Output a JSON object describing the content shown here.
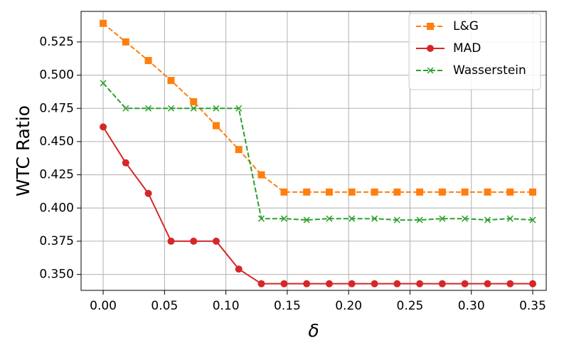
{
  "chart_data": {
    "type": "line",
    "xlabel": "δ",
    "ylabel": "WTC Ratio",
    "x": [
      0,
      0.0184,
      0.0368,
      0.0553,
      0.0737,
      0.0921,
      0.1105,
      0.1289,
      0.1474,
      0.1658,
      0.1842,
      0.2026,
      0.2211,
      0.2395,
      0.2579,
      0.2763,
      0.2947,
      0.3132,
      0.3316,
      0.35
    ],
    "series": [
      {
        "name": "L&G",
        "color": "#ff7f0e",
        "marker": "square",
        "dashed": true,
        "values": [
          0.539,
          0.525,
          0.511,
          0.496,
          0.48,
          0.462,
          0.444,
          0.425,
          0.412,
          0.412,
          0.412,
          0.412,
          0.412,
          0.412,
          0.412,
          0.412,
          0.412,
          0.412,
          0.412,
          0.412
        ]
      },
      {
        "name": "MAD",
        "color": "#d62728",
        "marker": "circle",
        "dashed": false,
        "values": [
          0.461,
          0.434,
          0.411,
          0.375,
          0.375,
          0.375,
          0.354,
          0.343,
          0.343,
          0.343,
          0.343,
          0.343,
          0.343,
          0.343,
          0.343,
          0.343,
          0.343,
          0.343,
          0.343,
          0.343
        ]
      },
      {
        "name": "Wasserstein",
        "color": "#2ca02c",
        "marker": "x",
        "dashed": true,
        "values": [
          0.494,
          0.475,
          0.475,
          0.475,
          0.475,
          0.475,
          0.475,
          0.392,
          0.392,
          0.391,
          0.392,
          0.392,
          0.392,
          0.391,
          0.391,
          0.392,
          0.392,
          0.391,
          0.392,
          0.391
        ]
      }
    ],
    "xlim": [
      -0.018,
      0.361
    ],
    "ylim": [
      0.338,
      0.548
    ],
    "xticks": [
      {
        "value": 0,
        "label": "0.00"
      },
      {
        "value": 0.05,
        "label": "0.05"
      },
      {
        "value": 0.1,
        "label": "0.10"
      },
      {
        "value": 0.15,
        "label": "0.15"
      },
      {
        "value": 0.2,
        "label": "0.20"
      },
      {
        "value": 0.25,
        "label": "0.25"
      },
      {
        "value": 0.3,
        "label": "0.30"
      },
      {
        "value": 0.35,
        "label": "0.35"
      }
    ],
    "yticks": [
      {
        "value": 0.35,
        "label": "0.350"
      },
      {
        "value": 0.375,
        "label": "0.375"
      },
      {
        "value": 0.4,
        "label": "0.400"
      },
      {
        "value": 0.425,
        "label": "0.425"
      },
      {
        "value": 0.45,
        "label": "0.450"
      },
      {
        "value": 0.475,
        "label": "0.475"
      },
      {
        "value": 0.5,
        "label": "0.500"
      },
      {
        "value": 0.525,
        "label": "0.525"
      }
    ],
    "grid": true,
    "legend": "upper right"
  }
}
